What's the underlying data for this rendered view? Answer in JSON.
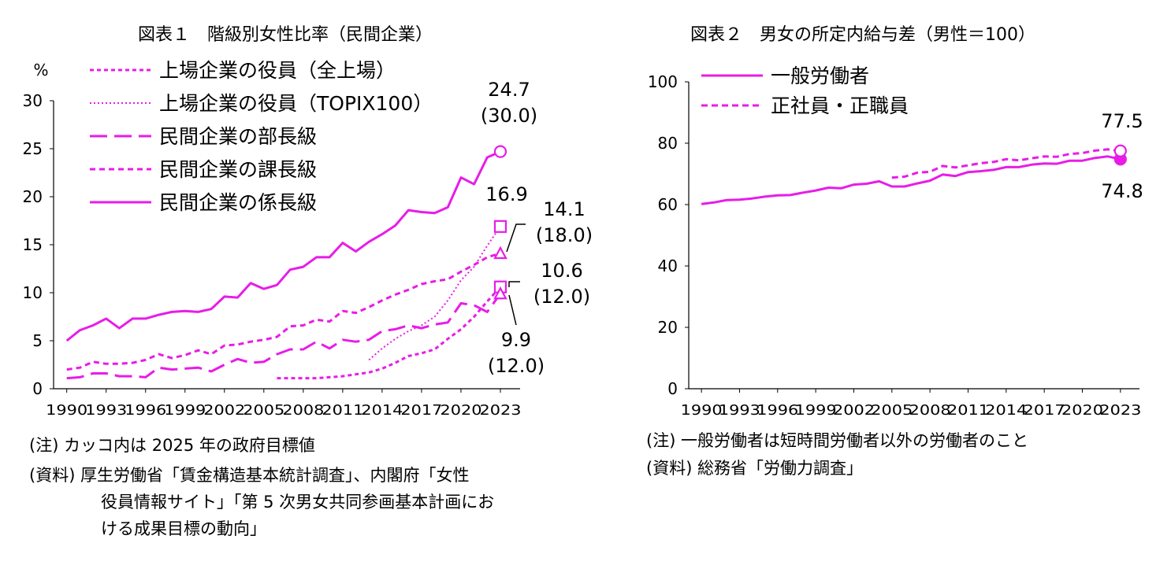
{
  "chart_data": [
    {
      "type": "line",
      "title": "図表１　階級別女性比率（民間企業）",
      "ylabel": "%",
      "ylim": [
        0,
        30
      ],
      "yticks": [
        "0",
        "5",
        "10",
        "15",
        "20",
        "25",
        "30"
      ],
      "xlim": [
        1989,
        2024.5
      ],
      "xticks": [
        "1990",
        "1993",
        "1996",
        "1999",
        "2002",
        "2005",
        "2008",
        "2011",
        "2014",
        "2017",
        "2020",
        "2023"
      ],
      "series": [
        {
          "name": "上場企業の役員（全上場）",
          "dash": "5 4",
          "width": 3,
          "x": [
            2006,
            2007,
            2008,
            2009,
            2010,
            2011,
            2012,
            2013,
            2014,
            2015,
            2016,
            2017,
            2018,
            2019,
            2020,
            2021,
            2022,
            2023
          ],
          "values": [
            1.1,
            1.1,
            1.1,
            1.1,
            1.2,
            1.3,
            1.5,
            1.7,
            2.1,
            2.7,
            3.4,
            3.7,
            4.1,
            5.2,
            6.2,
            7.5,
            9.1,
            10.6
          ],
          "end_marker": "square"
        },
        {
          "name": "上場企業の役員（TOPIX100）",
          "dash": "2 3",
          "width": 2,
          "x": [
            2013,
            2014,
            2015,
            2016,
            2017,
            2018,
            2019,
            2020,
            2021,
            2022,
            2023
          ],
          "values": [
            3.0,
            4.2,
            5.2,
            6.0,
            6.6,
            7.5,
            9.2,
            11.3,
            12.7,
            14.9,
            16.9
          ],
          "end_marker": "square"
        },
        {
          "name": "民間企業の部長級",
          "dash": "22 9",
          "width": 3,
          "x": [
            1990,
            1991,
            1992,
            1993,
            1994,
            1995,
            1996,
            1997,
            1998,
            1999,
            2000,
            2001,
            2002,
            2003,
            2004,
            2005,
            2006,
            2007,
            2008,
            2009,
            2010,
            2011,
            2012,
            2013,
            2014,
            2015,
            2016,
            2017,
            2018,
            2019,
            2020,
            2021,
            2022,
            2023
          ],
          "values": [
            1.1,
            1.2,
            1.6,
            1.6,
            1.3,
            1.3,
            1.2,
            2.2,
            2.0,
            2.1,
            2.2,
            1.8,
            2.5,
            3.1,
            2.7,
            2.8,
            3.6,
            4.1,
            4.1,
            4.9,
            4.2,
            5.1,
            4.9,
            5.1,
            6.0,
            6.2,
            6.6,
            6.3,
            6.7,
            6.9,
            8.9,
            8.7,
            8.0,
            9.9
          ],
          "end_marker": "triangle"
        },
        {
          "name": "民間企業の課長級",
          "dash": "7 5",
          "width": 3,
          "x": [
            1990,
            1991,
            1992,
            1993,
            1994,
            1995,
            1996,
            1997,
            1998,
            1999,
            2000,
            2001,
            2002,
            2003,
            2004,
            2005,
            2006,
            2007,
            2008,
            2009,
            2010,
            2011,
            2012,
            2013,
            2014,
            2015,
            2016,
            2017,
            2018,
            2019,
            2020,
            2021,
            2022,
            2023
          ],
          "values": [
            2.0,
            2.2,
            2.8,
            2.6,
            2.6,
            2.7,
            3.0,
            3.6,
            3.2,
            3.5,
            4.0,
            3.6,
            4.5,
            4.6,
            4.9,
            5.1,
            5.4,
            6.5,
            6.6,
            7.2,
            7.0,
            8.1,
            7.9,
            8.5,
            9.2,
            9.8,
            10.3,
            10.9,
            11.2,
            11.4,
            12.2,
            12.9,
            13.7,
            14.1
          ],
          "end_marker": "triangle"
        },
        {
          "name": "民間企業の係長級",
          "dash": "",
          "width": 3,
          "x": [
            1990,
            1991,
            1992,
            1993,
            1994,
            1995,
            1996,
            1997,
            1998,
            1999,
            2000,
            2001,
            2002,
            2003,
            2004,
            2005,
            2006,
            2007,
            2008,
            2009,
            2010,
            2011,
            2012,
            2013,
            2014,
            2015,
            2016,
            2017,
            2018,
            2019,
            2020,
            2021,
            2022,
            2023
          ],
          "values": [
            5.0,
            6.1,
            6.6,
            7.3,
            6.3,
            7.3,
            7.3,
            7.7,
            8.0,
            8.1,
            8.0,
            8.3,
            9.6,
            9.5,
            11.0,
            10.4,
            10.8,
            12.4,
            12.7,
            13.7,
            13.7,
            15.2,
            14.3,
            15.3,
            16.1,
            17.0,
            18.6,
            18.4,
            18.3,
            18.9,
            22.0,
            21.3,
            24.1,
            24.7
          ],
          "end_marker": "circle"
        }
      ],
      "annotations": [
        {
          "id": "a247",
          "lines": [
            "24.7",
            "(30.0)"
          ]
        },
        {
          "id": "a169",
          "lines": [
            "16.9"
          ]
        },
        {
          "id": "a141",
          "lines": [
            "14.1",
            "(18.0)"
          ]
        },
        {
          "id": "a106",
          "lines": [
            "10.6",
            "(12.0)"
          ]
        },
        {
          "id": "a99",
          "lines": [
            "9.9",
            "(12.0)"
          ]
        }
      ],
      "notes": [
        "(注) カッコ内は 2025 年の政府目標値",
        "(資料) 厚生労働省「賃金構造基本統計調査」、内閣府「女性",
        "役員情報サイト」「第 5 次男女共同参画基本計画にお",
        "ける成果目標の動向」"
      ]
    },
    {
      "type": "line",
      "title": "図表２　男女の所定内給与差（男性＝100）",
      "ylim": [
        0,
        100
      ],
      "yticks": [
        "0",
        "20",
        "40",
        "60",
        "80",
        "100"
      ],
      "xlim": [
        1989,
        2024.5
      ],
      "xticks": [
        "1990",
        "1993",
        "1996",
        "1999",
        "2002",
        "2005",
        "2008",
        "2011",
        "2014",
        "2017",
        "2020",
        "2023"
      ],
      "series": [
        {
          "name": "一般労働者",
          "dash": "",
          "width": 3,
          "x": [
            1990,
            1991,
            1992,
            1993,
            1994,
            1995,
            1996,
            1997,
            1998,
            1999,
            2000,
            2001,
            2002,
            2003,
            2004,
            2005,
            2006,
            2007,
            2008,
            2009,
            2010,
            2011,
            2012,
            2013,
            2014,
            2015,
            2016,
            2017,
            2018,
            2019,
            2020,
            2021,
            2022,
            2023
          ],
          "values": [
            60.2,
            60.7,
            61.5,
            61.6,
            62.0,
            62.6,
            63.0,
            63.1,
            63.9,
            64.6,
            65.5,
            65.3,
            66.5,
            66.8,
            67.6,
            65.9,
            65.9,
            66.9,
            67.8,
            69.8,
            69.3,
            70.6,
            70.9,
            71.3,
            72.2,
            72.2,
            73.0,
            73.4,
            73.3,
            74.3,
            74.3,
            75.2,
            75.7,
            74.8
          ],
          "end_marker": "filled-circle"
        },
        {
          "name": "正社員・正職員",
          "dash": "8 5",
          "width": 3,
          "x": [
            2005,
            2006,
            2007,
            2008,
            2009,
            2010,
            2011,
            2012,
            2013,
            2014,
            2015,
            2016,
            2017,
            2018,
            2019,
            2020,
            2021,
            2022,
            2023
          ],
          "values": [
            68.8,
            69.1,
            70.4,
            70.7,
            72.6,
            72.1,
            72.8,
            73.5,
            73.9,
            74.8,
            74.4,
            75.1,
            75.7,
            75.6,
            76.5,
            76.8,
            77.6,
            78.0,
            77.5
          ],
          "end_marker": "circle"
        }
      ],
      "annotations": [
        {
          "id": "b775",
          "lines": [
            "77.5"
          ]
        },
        {
          "id": "b748",
          "lines": [
            "74.8"
          ]
        }
      ],
      "notes": [
        "(注) 一般労働者は短時間労働者以外の労働者のこと",
        "(資料) 総務省「労働力調査」"
      ]
    }
  ],
  "colors": {
    "line": "#e81ce8",
    "axis": "#000000"
  }
}
